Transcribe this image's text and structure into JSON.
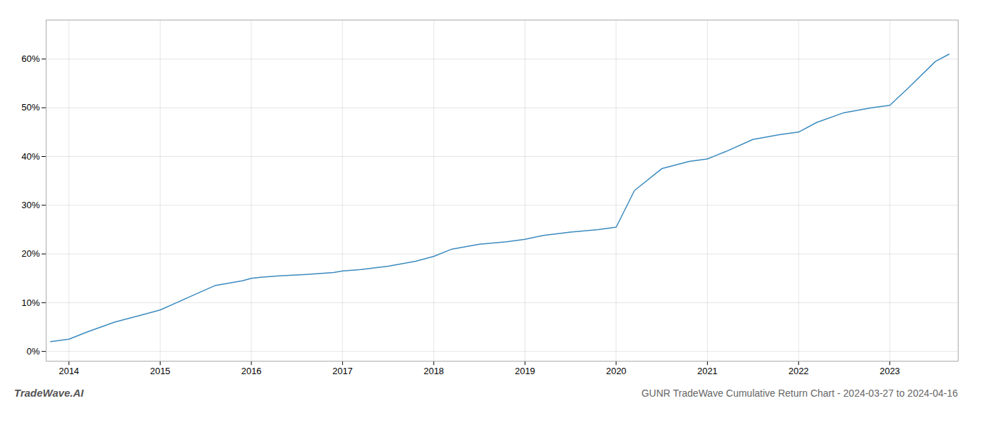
{
  "chart_data": {
    "type": "line",
    "title": "GUNR TradeWave Cumulative Return Chart - 2024-03-27 to 2024-04-16",
    "annotations": [
      "TradeWave.AI"
    ],
    "x": [
      2013.8,
      2014.0,
      2014.2,
      2014.5,
      2014.8,
      2015.0,
      2015.3,
      2015.6,
      2015.9,
      2016.0,
      2016.1,
      2016.3,
      2016.6,
      2016.9,
      2017.0,
      2017.2,
      2017.5,
      2017.8,
      2018.0,
      2018.2,
      2018.5,
      2018.8,
      2019.0,
      2019.2,
      2019.5,
      2019.8,
      2020.0,
      2020.2,
      2020.5,
      2020.8,
      2021.0,
      2021.2,
      2021.5,
      2021.8,
      2022.0,
      2022.2,
      2022.5,
      2022.8,
      2023.0,
      2023.2,
      2023.5,
      2023.65
    ],
    "values": [
      2.0,
      2.5,
      4.0,
      6.0,
      7.5,
      8.5,
      11.0,
      13.5,
      14.5,
      15.0,
      15.2,
      15.5,
      15.8,
      16.2,
      16.5,
      16.8,
      17.5,
      18.5,
      19.5,
      21.0,
      22.0,
      22.5,
      23.0,
      23.8,
      24.5,
      25.0,
      25.5,
      33.0,
      37.5,
      39.0,
      39.5,
      41.0,
      43.5,
      44.5,
      45.0,
      47.0,
      49.0,
      50.0,
      50.5,
      54.0,
      59.5,
      61.0
    ],
    "color": "#3a8abf",
    "xlim": [
      2013.75,
      2023.75
    ],
    "xticks": [
      2014,
      2015,
      2016,
      2017,
      2018,
      2019,
      2020,
      2021,
      2022,
      2023
    ],
    "ylim": [
      -2,
      68
    ],
    "yticks": [
      {
        "value": 0,
        "label": "0%"
      },
      {
        "value": 10,
        "label": "10%"
      },
      {
        "value": 20,
        "label": "20%"
      },
      {
        "value": 30,
        "label": "30%"
      },
      {
        "value": 40,
        "label": "40%"
      },
      {
        "value": 50,
        "label": "50%"
      },
      {
        "value": 60,
        "label": "60%"
      }
    ],
    "grid": true
  }
}
